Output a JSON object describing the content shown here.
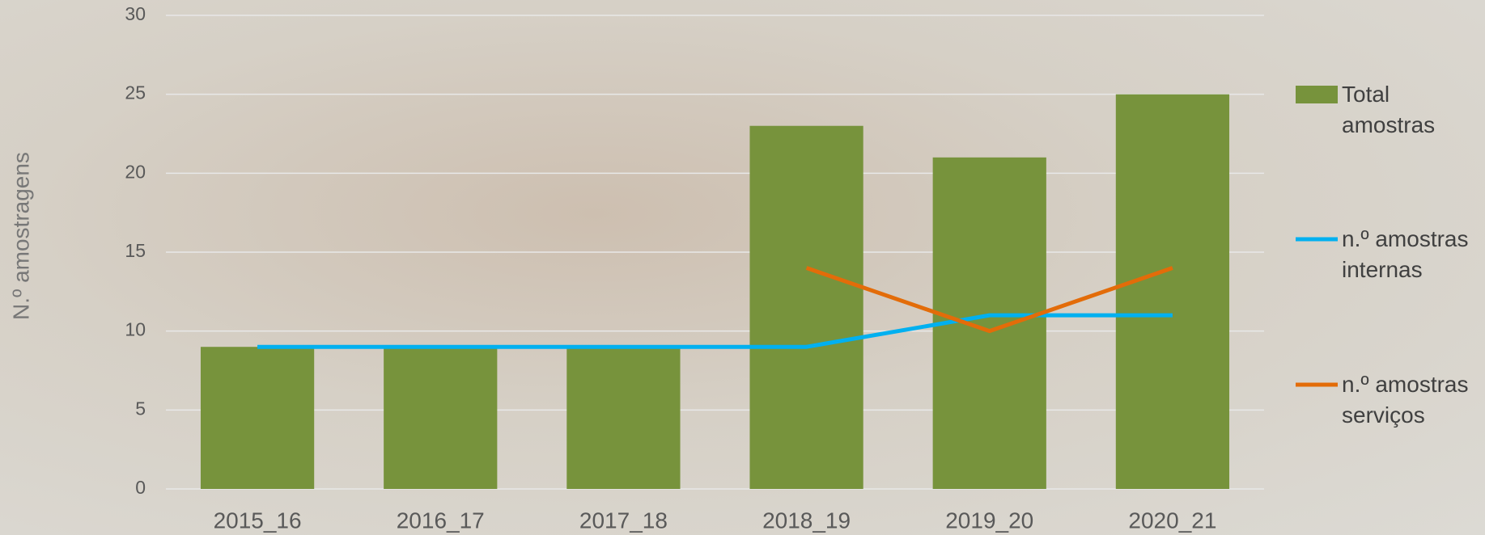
{
  "chart_data": {
    "type": "bar",
    "y_label": "N.º amostragens",
    "categories": [
      "2015_16",
      "2016_17",
      "2017_18",
      "2018_19",
      "2019_20",
      "2020_21"
    ],
    "series": [
      {
        "name": "Total amostras",
        "type": "bar",
        "color": "#77933c",
        "values": [
          9,
          9,
          9,
          23,
          21,
          25
        ]
      },
      {
        "name": "n.º amostras internas",
        "type": "line",
        "color": "#00b0f0",
        "values": [
          9,
          9,
          9,
          9,
          11,
          11
        ]
      },
      {
        "name": "n.º amostras serviços",
        "type": "line",
        "color": "#e36c09",
        "values": [
          null,
          null,
          null,
          14,
          10,
          14
        ]
      }
    ],
    "ylim": [
      0,
      30
    ],
    "yticks": [
      0,
      5,
      10,
      15,
      20,
      25,
      30
    ],
    "grid": true,
    "legend": "right"
  }
}
